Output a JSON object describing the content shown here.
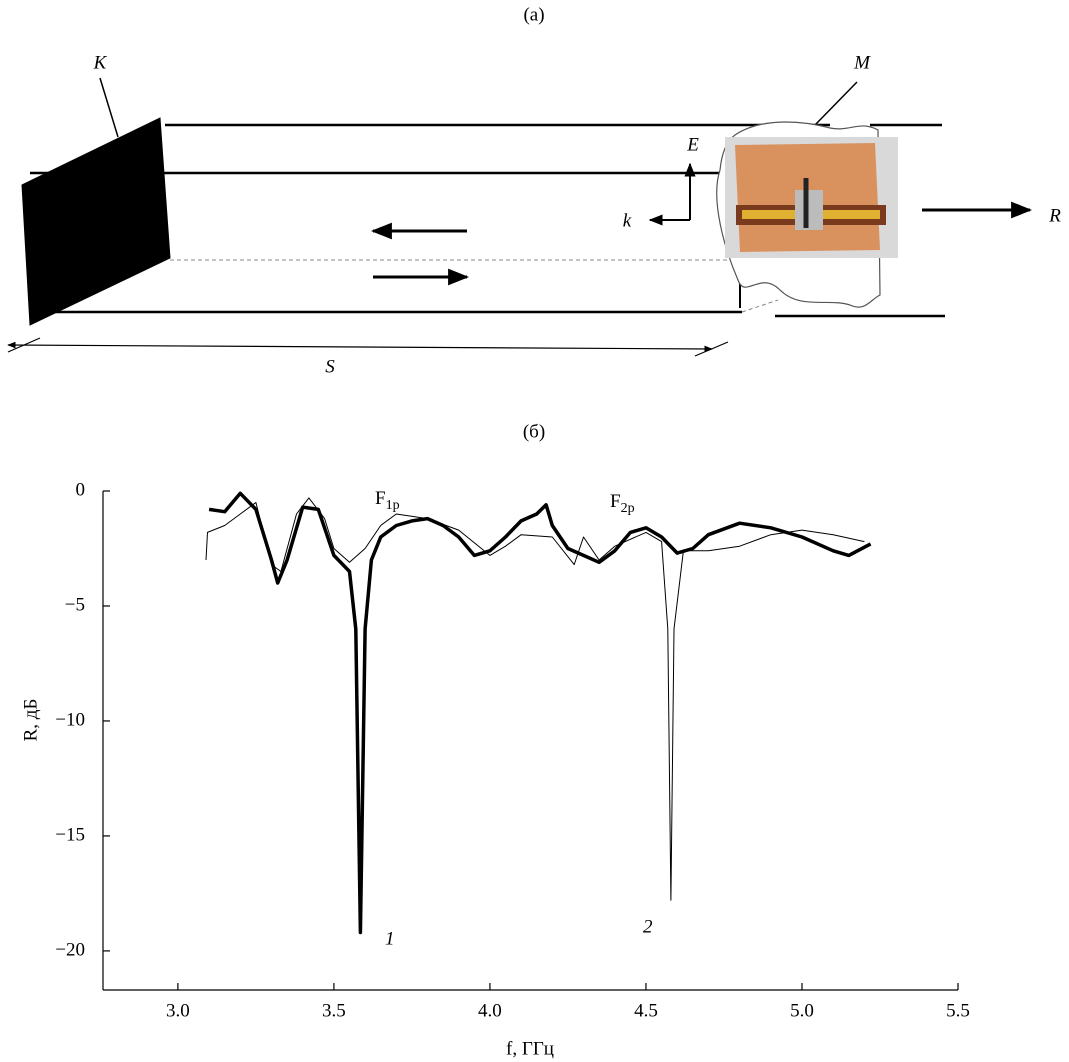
{
  "diagram": {
    "panel_label": "(а)",
    "labels": {
      "K": "K",
      "M": "M",
      "E": "E",
      "k": "k",
      "R": "R",
      "S": "S"
    }
  },
  "chart_data": {
    "type": "line",
    "title": "(б)",
    "xlabel": "f, ГГц",
    "ylabel": "R, дБ",
    "xlim": [
      2.76,
      5.5
    ],
    "ylim": [
      -21.7,
      0
    ],
    "xticks": [
      {
        "value": 3,
        "label": "3.0"
      },
      3.5,
      {
        "value": 4,
        "label": "4.0"
      },
      4.5,
      {
        "value": 5,
        "label": "5.0"
      },
      5.5
    ],
    "yticks": [
      0,
      {
        "value": -5,
        "label": "−5"
      },
      {
        "value": -10,
        "label": "−10"
      },
      {
        "value": -15,
        "label": "−15"
      },
      {
        "value": -20,
        "label": "−20"
      }
    ],
    "annotations": [
      {
        "text": "F",
        "sub": "1p"
      },
      {
        "text": "F",
        "sub": "2p"
      }
    ],
    "series": [
      {
        "name": "1",
        "color": "#000000",
        "width": 3.5,
        "x": [
          3.1,
          3.15,
          3.2,
          3.25,
          3.3,
          3.32,
          3.35,
          3.4,
          3.45,
          3.5,
          3.55,
          3.57,
          3.585,
          3.6,
          3.62,
          3.65,
          3.7,
          3.75,
          3.8,
          3.85,
          3.9,
          3.95,
          4.0,
          4.05,
          4.1,
          4.15,
          4.18,
          4.2,
          4.25,
          4.3,
          4.35,
          4.4,
          4.45,
          4.5,
          4.55,
          4.6,
          4.65,
          4.7,
          4.8,
          4.9,
          5.0,
          5.1,
          5.15,
          5.22
        ],
        "values": [
          -0.8,
          -0.9,
          -0.1,
          -0.8,
          -3.0,
          -4.0,
          -3.0,
          -0.7,
          -0.8,
          -2.8,
          -3.5,
          -6,
          -19.2,
          -6,
          -3,
          -2,
          -1.5,
          -1.3,
          -1.2,
          -1.5,
          -2.0,
          -2.8,
          -2.6,
          -2.0,
          -1.3,
          -1.0,
          -0.6,
          -1.5,
          -2.5,
          -2.8,
          -3.1,
          -2.6,
          -1.8,
          -1.6,
          -2.0,
          -2.7,
          -2.5,
          -1.9,
          -1.4,
          -1.6,
          -2.0,
          -2.6,
          -2.8,
          -2.3
        ]
      },
      {
        "name": "2",
        "color": "#000000",
        "width": 1,
        "x": [
          3.09,
          3.095,
          3.15,
          3.2,
          3.25,
          3.3,
          3.33,
          3.38,
          3.42,
          3.47,
          3.5,
          3.55,
          3.6,
          3.65,
          3.7,
          3.8,
          3.9,
          4.0,
          4.05,
          4.1,
          4.2,
          4.27,
          4.3,
          4.35,
          4.4,
          4.5,
          4.55,
          4.57,
          4.58,
          4.59,
          4.62,
          4.7,
          4.8,
          4.9,
          5.0,
          5.1,
          5.2
        ],
        "values": [
          -3.0,
          -1.8,
          -1.5,
          -1.0,
          -0.5,
          -3.2,
          -3.5,
          -1.0,
          -0.3,
          -1.2,
          -2.5,
          -3.1,
          -2.5,
          -1.5,
          -1.0,
          -1.2,
          -1.7,
          -2.8,
          -2.4,
          -1.9,
          -2.0,
          -3.2,
          -2.0,
          -3.0,
          -2.4,
          -1.8,
          -2.2,
          -6,
          -17.8,
          -6,
          -2.6,
          -2.6,
          -2.4,
          -1.9,
          -1.7,
          -1.9,
          -2.2
        ]
      }
    ]
  }
}
